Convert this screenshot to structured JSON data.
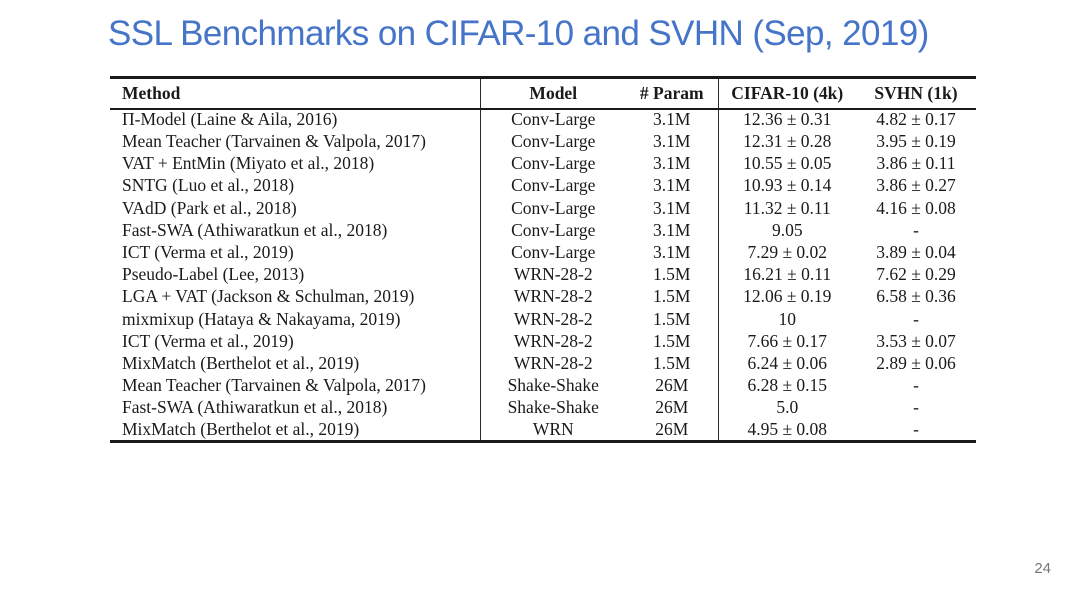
{
  "slide": {
    "title": "SSL Benchmarks on CIFAR-10 and SVHN (Sep, 2019)",
    "page_number": "24"
  },
  "theme": {
    "title_color": "#4574c9",
    "text_color": "#1a1a1a",
    "rule_color": "#1a1a1a",
    "background": "#ffffff",
    "page_number_color": "#777777"
  },
  "table": {
    "columns": [
      "Method",
      "Model",
      "# Param",
      "CIFAR-10 (4k)",
      "SVHN (1k)"
    ],
    "rows": [
      [
        "Π-Model (Laine & Aila, 2016)",
        "Conv-Large",
        "3.1M",
        "12.36 ± 0.31",
        "4.82 ± 0.17"
      ],
      [
        "Mean Teacher (Tarvainen & Valpola, 2017)",
        "Conv-Large",
        "3.1M",
        "12.31 ± 0.28",
        "3.95 ± 0.19"
      ],
      [
        "VAT + EntMin (Miyato et al., 2018)",
        "Conv-Large",
        "3.1M",
        "10.55 ± 0.05",
        "3.86 ± 0.11"
      ],
      [
        "SNTG (Luo et al., 2018)",
        "Conv-Large",
        "3.1M",
        "10.93 ± 0.14",
        "3.86 ± 0.27"
      ],
      [
        "VAdD (Park et al., 2018)",
        "Conv-Large",
        "3.1M",
        "11.32 ± 0.11",
        "4.16 ± 0.08"
      ],
      [
        "Fast-SWA (Athiwaratkun et al., 2018)",
        "Conv-Large",
        "3.1M",
        "9.05",
        "-"
      ],
      [
        "ICT (Verma et al., 2019)",
        "Conv-Large",
        "3.1M",
        "7.29 ± 0.02",
        "3.89 ± 0.04"
      ],
      [
        "Pseudo-Label (Lee, 2013)",
        "WRN-28-2",
        "1.5M",
        "16.21 ± 0.11",
        "7.62 ± 0.29"
      ],
      [
        "LGA + VAT (Jackson & Schulman, 2019)",
        "WRN-28-2",
        "1.5M",
        "12.06 ± 0.19",
        "6.58 ± 0.36"
      ],
      [
        "mixmixup (Hataya & Nakayama, 2019)",
        "WRN-28-2",
        "1.5M",
        "10",
        "-"
      ],
      [
        "ICT (Verma et al., 2019)",
        "WRN-28-2",
        "1.5M",
        "7.66 ± 0.17",
        "3.53 ± 0.07"
      ],
      [
        "MixMatch (Berthelot et al., 2019)",
        "WRN-28-2",
        "1.5M",
        "6.24 ± 0.06",
        "2.89 ± 0.06"
      ],
      [
        "Mean Teacher (Tarvainen & Valpola, 2017)",
        "Shake-Shake",
        "26M",
        "6.28 ± 0.15",
        "-"
      ],
      [
        "Fast-SWA (Athiwaratkun et al., 2018)",
        "Shake-Shake",
        "26M",
        "5.0",
        "-"
      ],
      [
        "MixMatch (Berthelot et al., 2019)",
        "WRN",
        "26M",
        "4.95 ± 0.08",
        "-"
      ]
    ]
  }
}
